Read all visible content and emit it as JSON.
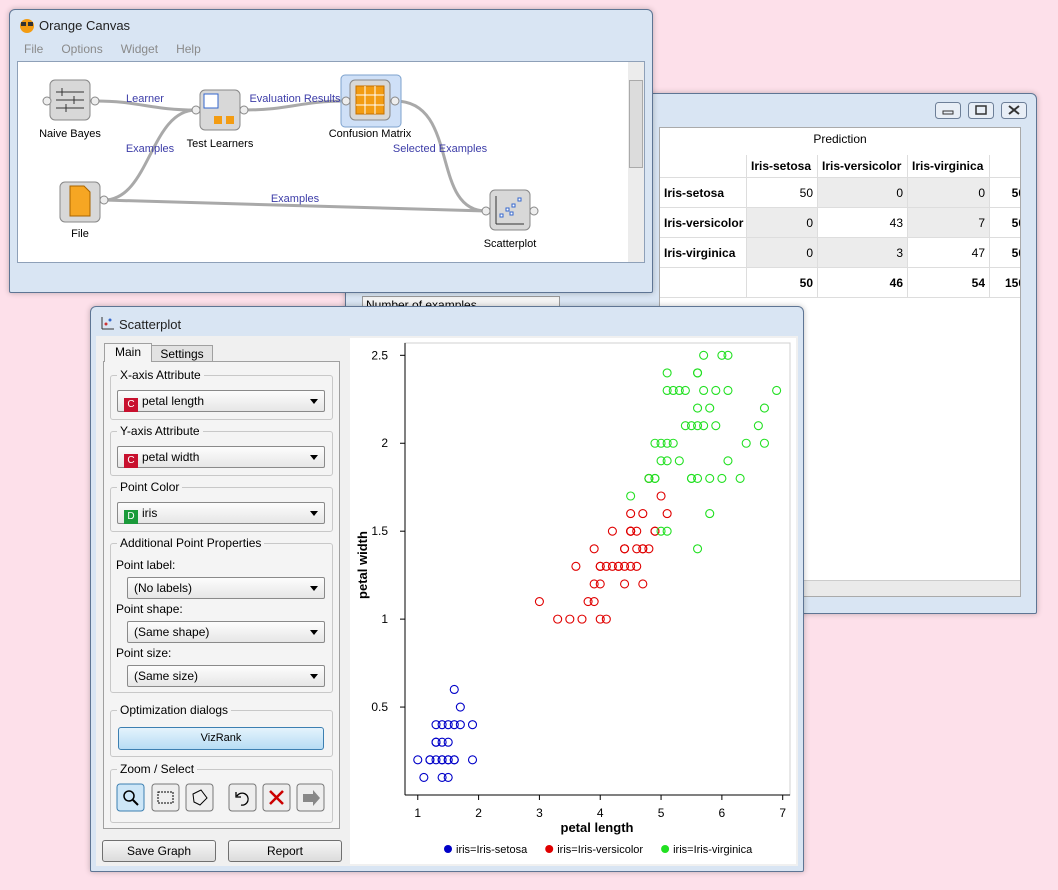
{
  "canvas_window": {
    "title": "Orange Canvas",
    "menu": [
      "File",
      "Options",
      "Widget",
      "Help"
    ],
    "nodes": [
      "Naive Bayes",
      "Test Learners",
      "Confusion Matrix",
      "File",
      "Scatterplot"
    ],
    "links": [
      "Learner",
      "Evaluation Results",
      "Examples",
      "Selected Examples",
      "Examples"
    ]
  },
  "confusion_window": {
    "header": "Prediction",
    "columns": [
      "Iris-setosa",
      "Iris-versicolor",
      "Iris-virginica"
    ],
    "rows": [
      {
        "label": "Iris-setosa",
        "values": [
          50,
          0,
          0,
          50
        ]
      },
      {
        "label": "Iris-versicolor",
        "values": [
          0,
          43,
          7,
          50
        ]
      },
      {
        "label": "Iris-virginica",
        "values": [
          0,
          3,
          47,
          50
        ]
      }
    ],
    "totals": [
      50,
      46,
      54,
      150
    ],
    "below": "Number of examples"
  },
  "scatter_window": {
    "title": "Scatterplot",
    "tabs": [
      "Main",
      "Settings"
    ],
    "x_attribute": {
      "title": "X-axis Attribute",
      "badge": "C",
      "value": "petal length"
    },
    "y_attribute": {
      "title": "Y-axis Attribute",
      "badge": "C",
      "value": "petal width"
    },
    "point_color": {
      "title": "Point Color",
      "badge": "D",
      "value": "iris"
    },
    "point_properties": {
      "title": "Additional Point Properties",
      "fields": [
        {
          "label": "Point label:",
          "value": "(No labels)"
        },
        {
          "label": "Point shape:",
          "value": "(Same shape)"
        },
        {
          "label": "Point size:",
          "value": "(Same size)"
        }
      ]
    },
    "optimization": {
      "title": "Optimization dialogs",
      "button": "VizRank"
    },
    "zoom_select": {
      "title": "Zoom / Select"
    },
    "buttons": [
      "Save Graph",
      "Report"
    ]
  },
  "chart_data": {
    "type": "scatter",
    "x_label": "petal length",
    "y_label": "petal width",
    "xlim": [
      0.79,
      7.12
    ],
    "ylim": [
      0,
      2.57
    ],
    "xticks": [
      1,
      2,
      3,
      4,
      5,
      6,
      7
    ],
    "yticks": [
      0.5,
      1,
      1.5,
      2,
      2.5
    ],
    "series": [
      {
        "name": "iris=Iris-setosa",
        "color": "#0000c8",
        "x": [
          1.4,
          1.3,
          1.5,
          1.7,
          1.4,
          1.5,
          1.6,
          1.4,
          1.1,
          1.2,
          1.3,
          1.0,
          1.9,
          1.6,
          1.5,
          1.4,
          1.6,
          1.5,
          1.2,
          1.3,
          1.4,
          1.6,
          1.9,
          1.7,
          1.5,
          1.3
        ],
        "values": [
          0.2,
          0.2,
          0.2,
          0.4,
          0.3,
          0.1,
          0.2,
          0.1,
          0.1,
          0.2,
          0.4,
          0.2,
          0.2,
          0.6,
          0.4,
          0.4,
          0.4,
          0.3,
          0.2,
          0.3,
          0.2,
          0.2,
          0.4,
          0.5,
          0.2,
          0.3
        ]
      },
      {
        "name": "iris=Iris-versicolor",
        "color": "#e00000",
        "x": [
          4.7,
          4.5,
          4.9,
          4.0,
          4.6,
          4.5,
          4.7,
          3.3,
          4.6,
          3.9,
          3.5,
          4.2,
          4.0,
          4.7,
          3.6,
          4.4,
          4.5,
          4.1,
          4.5,
          3.9,
          4.8,
          4.0,
          4.9,
          4.7,
          4.3,
          4.4,
          4.8,
          5.0,
          4.5,
          3.8,
          3.7,
          3.9,
          5.1,
          4.5,
          4.4,
          4.1,
          4.0,
          4.4,
          4.6,
          3.0,
          4.2,
          4.3
        ],
        "values": [
          1.4,
          1.5,
          1.5,
          1.3,
          1.5,
          1.3,
          1.6,
          1.0,
          1.3,
          1.4,
          1.0,
          1.5,
          1.0,
          1.4,
          1.3,
          1.4,
          1.5,
          1.0,
          1.5,
          1.1,
          1.8,
          1.3,
          1.5,
          1.2,
          1.3,
          1.4,
          1.4,
          1.7,
          1.5,
          1.1,
          1.0,
          1.2,
          1.6,
          1.6,
          1.3,
          1.3,
          1.2,
          1.2,
          1.4,
          1.1,
          1.3,
          1.3
        ]
      },
      {
        "name": "iris=Iris-virginica",
        "color": "#22e022",
        "x": [
          6.0,
          5.1,
          5.9,
          5.6,
          5.8,
          6.6,
          4.5,
          6.3,
          5.8,
          6.1,
          5.1,
          5.3,
          5.5,
          5.0,
          5.1,
          5.3,
          5.5,
          6.7,
          6.9,
          5.0,
          5.7,
          4.9,
          6.7,
          4.9,
          5.7,
          6.0,
          4.8,
          4.9,
          5.6,
          5.8,
          6.1,
          6.4,
          5.6,
          5.1,
          5.6,
          6.1,
          5.6,
          5.5,
          4.8,
          5.4,
          5.6,
          5.1,
          5.9,
          5.7,
          5.2,
          5.0,
          5.2,
          5.4
        ],
        "values": [
          2.5,
          1.9,
          2.1,
          1.8,
          2.2,
          2.1,
          1.7,
          1.8,
          1.8,
          2.5,
          2.0,
          1.9,
          2.1,
          2.0,
          2.4,
          2.3,
          1.8,
          2.2,
          2.3,
          1.5,
          2.3,
          2.0,
          2.0,
          1.8,
          2.1,
          1.8,
          1.8,
          1.8,
          2.1,
          1.6,
          1.9,
          2.0,
          2.2,
          1.5,
          1.4,
          2.3,
          2.4,
          1.8,
          1.8,
          2.1,
          2.4,
          2.3,
          2.3,
          2.5,
          2.3,
          1.9,
          2.0,
          2.3
        ]
      }
    ]
  }
}
